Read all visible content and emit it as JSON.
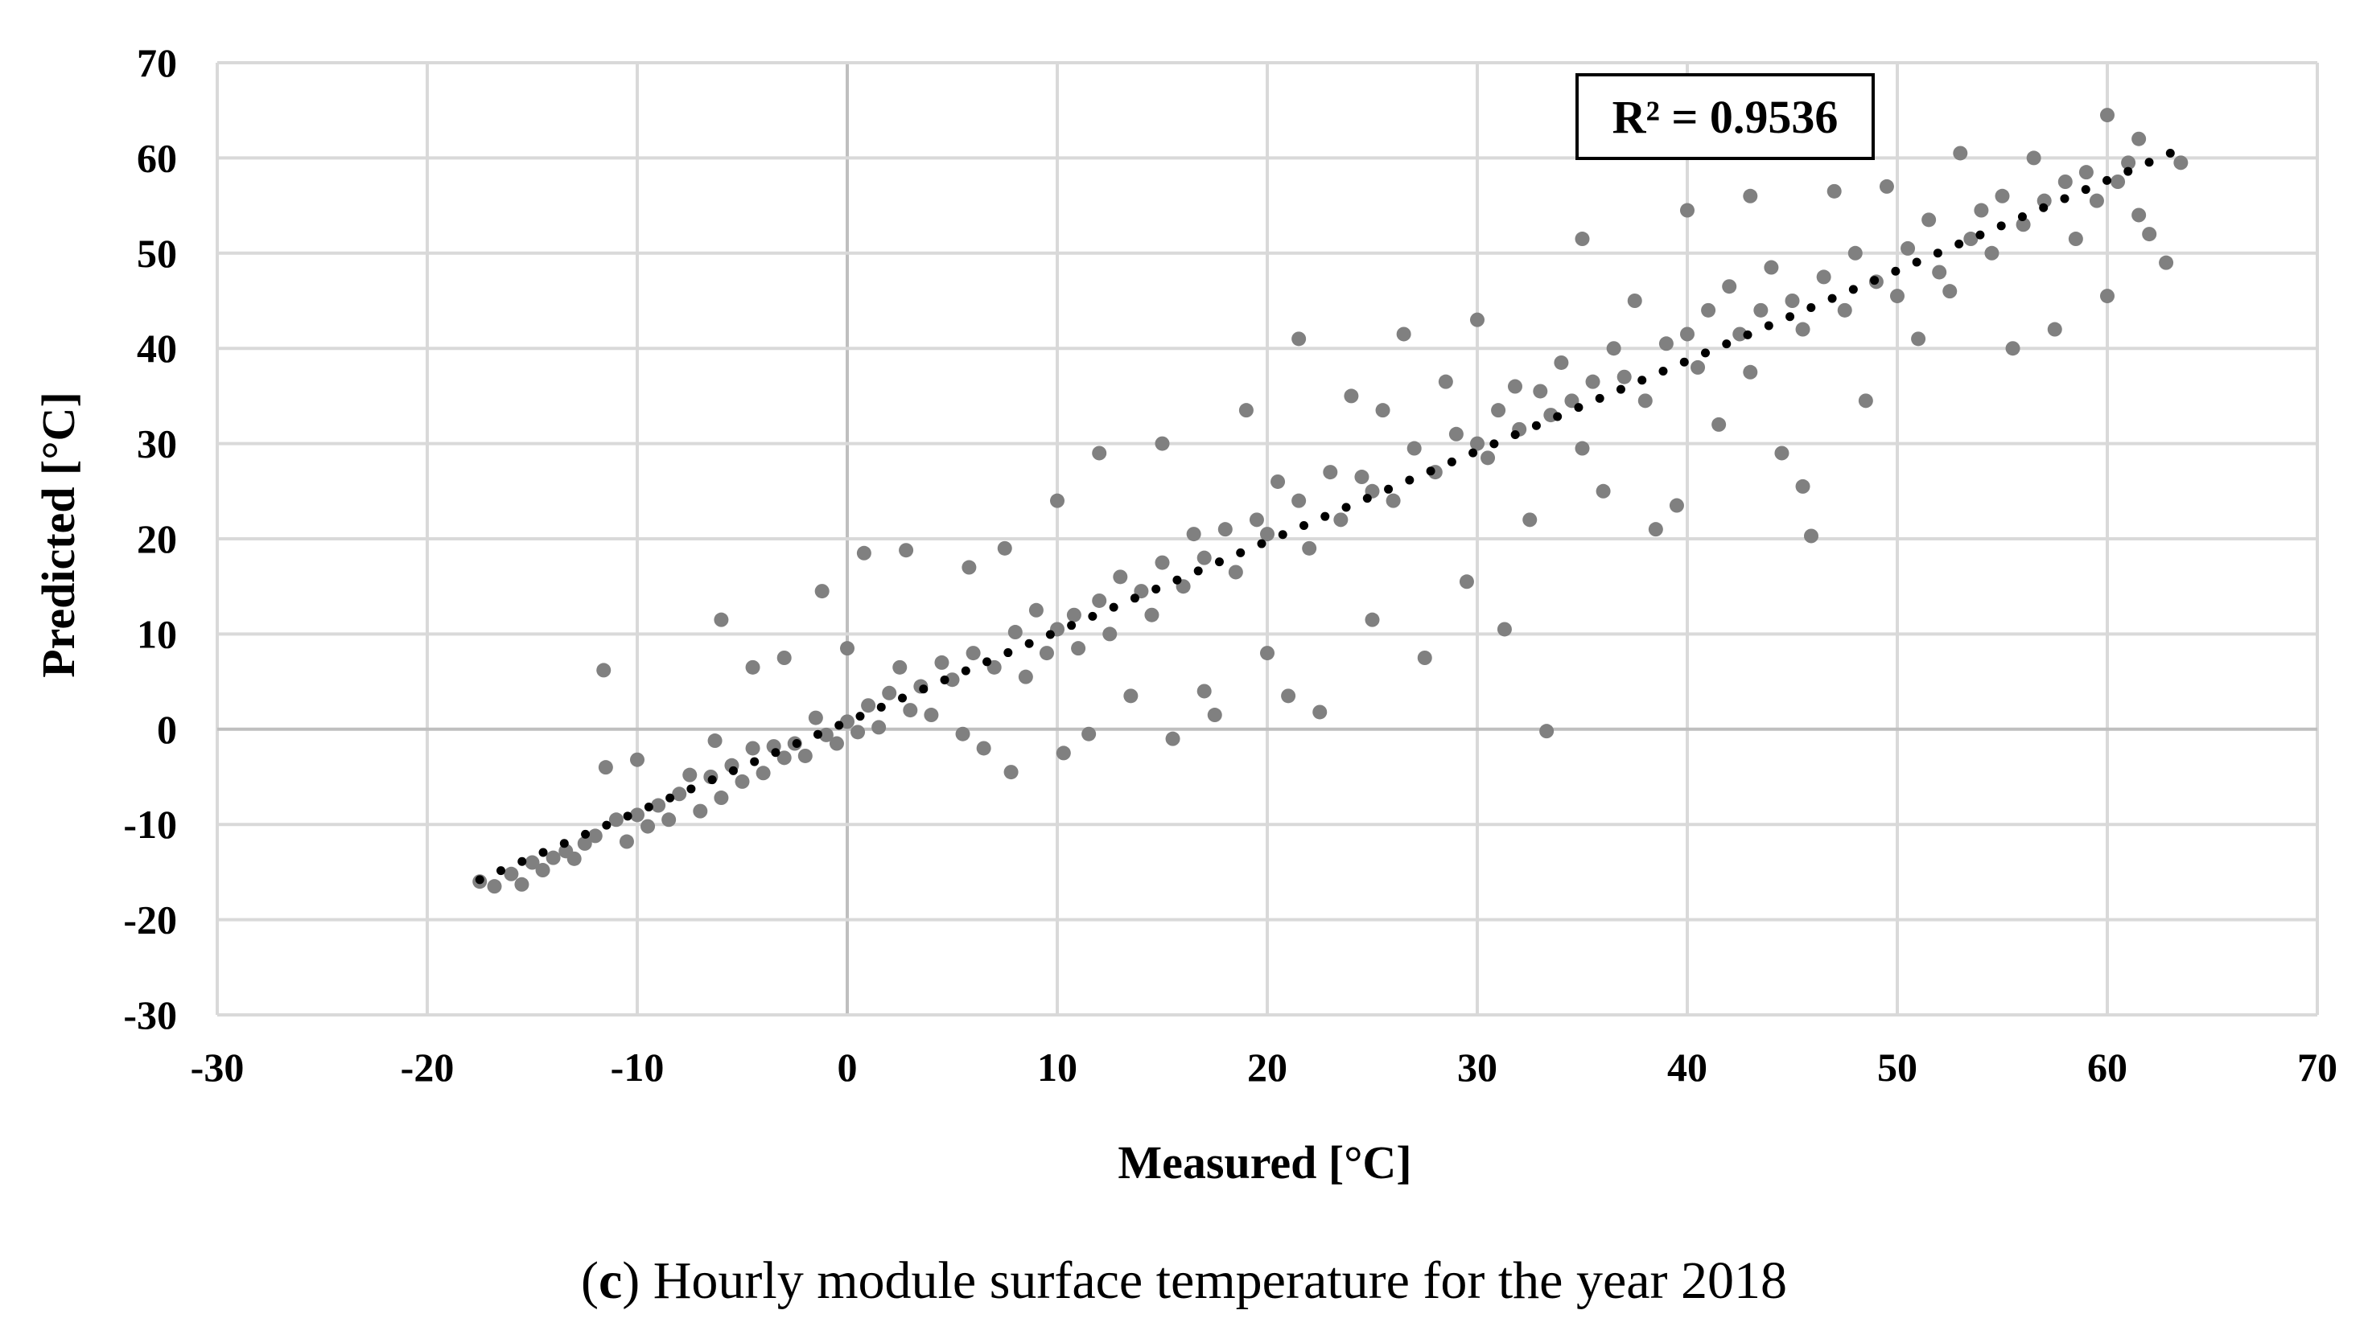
{
  "chart_data": {
    "type": "scatter",
    "title": "",
    "xlabel": "Measured [°C]",
    "ylabel": "Predicted [°C]",
    "xlim": [
      -30,
      70
    ],
    "ylim": [
      -30,
      70
    ],
    "xticks": [
      -30,
      -20,
      -10,
      0,
      10,
      20,
      30,
      40,
      50,
      60,
      70
    ],
    "yticks": [
      -30,
      -20,
      -10,
      0,
      10,
      20,
      30,
      40,
      50,
      60,
      70
    ],
    "grid": true,
    "series": [
      {
        "name": "Hourly module surface temperature",
        "marker_color": "#808080",
        "points": [
          [
            -17.5,
            -16
          ],
          [
            -16.8,
            -16.5
          ],
          [
            -16.0,
            -15.2
          ],
          [
            -15.5,
            -16.3
          ],
          [
            -15.0,
            -14.0
          ],
          [
            -14.5,
            -14.8
          ],
          [
            -14.0,
            -13.5
          ],
          [
            -13.4,
            -12.8
          ],
          [
            -13.0,
            -13.6
          ],
          [
            -12.5,
            -12.0
          ],
          [
            -12.0,
            -11.2
          ],
          [
            -11.6,
            6.2
          ],
          [
            -11.5,
            -4.0
          ],
          [
            -11.0,
            -9.5
          ],
          [
            -10.5,
            -11.8
          ],
          [
            -10.0,
            -9.0
          ],
          [
            -10.0,
            -3.2
          ],
          [
            -9.5,
            -10.2
          ],
          [
            -9.0,
            -8.0
          ],
          [
            -8.5,
            -9.5
          ],
          [
            -8.0,
            -6.8
          ],
          [
            -7.5,
            -4.8
          ],
          [
            -7.0,
            -8.6
          ],
          [
            -6.5,
            -5.0
          ],
          [
            -6.3,
            -1.2
          ],
          [
            -6.0,
            11.5
          ],
          [
            -6.0,
            -7.2
          ],
          [
            -5.5,
            -3.8
          ],
          [
            -5.0,
            -5.5
          ],
          [
            -4.5,
            -2.0
          ],
          [
            -4.5,
            6.5
          ],
          [
            -4.0,
            -4.6
          ],
          [
            -3.5,
            -1.8
          ],
          [
            -3.0,
            7.5
          ],
          [
            -3.0,
            -3.0
          ],
          [
            -2.5,
            -1.5
          ],
          [
            -2.0,
            -2.8
          ],
          [
            -1.5,
            1.2
          ],
          [
            -1.2,
            14.5
          ],
          [
            -1.0,
            -0.6
          ],
          [
            -0.5,
            -1.5
          ],
          [
            0.0,
            0.8
          ],
          [
            0.0,
            8.5
          ],
          [
            0.5,
            -0.3
          ],
          [
            0.8,
            18.5
          ],
          [
            1.0,
            2.5
          ],
          [
            1.5,
            0.2
          ],
          [
            2.0,
            3.8
          ],
          [
            2.5,
            6.5
          ],
          [
            2.8,
            18.8
          ],
          [
            3.0,
            2.0
          ],
          [
            3.5,
            4.5
          ],
          [
            4.0,
            1.5
          ],
          [
            4.5,
            7.0
          ],
          [
            5.0,
            5.2
          ],
          [
            5.5,
            -0.5
          ],
          [
            5.8,
            17.0
          ],
          [
            6.0,
            8.0
          ],
          [
            6.5,
            -2.0
          ],
          [
            7.0,
            6.5
          ],
          [
            7.5,
            19.0
          ],
          [
            7.8,
            -4.5
          ],
          [
            8.0,
            10.2
          ],
          [
            8.5,
            5.5
          ],
          [
            9.0,
            12.5
          ],
          [
            9.5,
            8.0
          ],
          [
            10.0,
            10.5
          ],
          [
            10.0,
            24.0
          ],
          [
            10.3,
            -2.5
          ],
          [
            10.8,
            12.0
          ],
          [
            11.0,
            8.5
          ],
          [
            11.5,
            -0.5
          ],
          [
            12.0,
            29.0
          ],
          [
            12.0,
            13.5
          ],
          [
            12.5,
            10.0
          ],
          [
            13.0,
            16.0
          ],
          [
            13.5,
            3.5
          ],
          [
            14.0,
            14.5
          ],
          [
            14.5,
            12.0
          ],
          [
            15.0,
            30.0
          ],
          [
            15.0,
            17.5
          ],
          [
            15.5,
            -1.0
          ],
          [
            16.0,
            15.0
          ],
          [
            16.5,
            20.5
          ],
          [
            17.0,
            4.0
          ],
          [
            17.0,
            18.0
          ],
          [
            17.5,
            1.5
          ],
          [
            18.0,
            21.0
          ],
          [
            18.5,
            16.5
          ],
          [
            19.0,
            33.5
          ],
          [
            19.5,
            22.0
          ],
          [
            20.0,
            8.0
          ],
          [
            20.0,
            20.5
          ],
          [
            20.5,
            26.0
          ],
          [
            21.0,
            3.5
          ],
          [
            21.5,
            41.0
          ],
          [
            21.5,
            24.0
          ],
          [
            22.0,
            19.0
          ],
          [
            22.5,
            1.8
          ],
          [
            23.0,
            27.0
          ],
          [
            23.5,
            22.0
          ],
          [
            24.0,
            35.0
          ],
          [
            24.5,
            26.5
          ],
          [
            25.0,
            11.5
          ],
          [
            25.0,
            25.0
          ],
          [
            25.5,
            33.5
          ],
          [
            26.0,
            24.0
          ],
          [
            26.5,
            41.5
          ],
          [
            27.0,
            29.5
          ],
          [
            27.5,
            7.5
          ],
          [
            28.0,
            27.0
          ],
          [
            28.5,
            36.5
          ],
          [
            29.0,
            31.0
          ],
          [
            29.5,
            15.5
          ],
          [
            30.0,
            30.0
          ],
          [
            30.0,
            43.0
          ],
          [
            30.5,
            28.5
          ],
          [
            31.0,
            33.5
          ],
          [
            31.3,
            10.5
          ],
          [
            31.8,
            36.0
          ],
          [
            32.0,
            31.5
          ],
          [
            32.5,
            22.0
          ],
          [
            33.0,
            35.5
          ],
          [
            33.3,
            -0.2
          ],
          [
            33.5,
            33.0
          ],
          [
            34.0,
            38.5
          ],
          [
            34.5,
            34.5
          ],
          [
            35.0,
            51.5
          ],
          [
            35.0,
            29.5
          ],
          [
            35.5,
            36.5
          ],
          [
            36.0,
            25.0
          ],
          [
            36.5,
            40.0
          ],
          [
            37.0,
            37.0
          ],
          [
            37.5,
            45.0
          ],
          [
            38.0,
            34.5
          ],
          [
            38.5,
            21.0
          ],
          [
            39.0,
            40.5
          ],
          [
            39.5,
            23.5
          ],
          [
            40.0,
            41.5
          ],
          [
            40.0,
            54.5
          ],
          [
            40.5,
            38.0
          ],
          [
            41.0,
            44.0
          ],
          [
            41.5,
            32.0
          ],
          [
            42.0,
            46.5
          ],
          [
            42.5,
            41.5
          ],
          [
            43.0,
            56.0
          ],
          [
            43.0,
            37.5
          ],
          [
            43.5,
            44.0
          ],
          [
            44.0,
            48.5
          ],
          [
            44.5,
            29.0
          ],
          [
            45.0,
            45.0
          ],
          [
            45.5,
            42.0
          ],
          [
            45.5,
            25.5
          ],
          [
            45.9,
            20.3
          ],
          [
            46.5,
            47.5
          ],
          [
            47.0,
            56.5
          ],
          [
            47.5,
            44.0
          ],
          [
            48.0,
            50.0
          ],
          [
            48.5,
            34.5
          ],
          [
            49.0,
            47.0
          ],
          [
            49.5,
            57.0
          ],
          [
            50.0,
            45.5
          ],
          [
            50.5,
            50.5
          ],
          [
            51.0,
            41.0
          ],
          [
            51.5,
            53.5
          ],
          [
            52.0,
            48.0
          ],
          [
            52.5,
            46.0
          ],
          [
            53.0,
            60.5
          ],
          [
            53.5,
            51.5
          ],
          [
            54.0,
            54.5
          ],
          [
            54.5,
            50.0
          ],
          [
            55.0,
            56.0
          ],
          [
            55.5,
            40.0
          ],
          [
            56.0,
            53.0
          ],
          [
            56.5,
            60.0
          ],
          [
            57.0,
            55.5
          ],
          [
            57.5,
            42.0
          ],
          [
            58.0,
            57.5
          ],
          [
            58.5,
            51.5
          ],
          [
            59.0,
            58.5
          ],
          [
            59.5,
            55.5
          ],
          [
            60.0,
            64.5
          ],
          [
            60.0,
            45.5
          ],
          [
            60.5,
            57.5
          ],
          [
            61.0,
            59.5
          ],
          [
            61.5,
            62.0
          ],
          [
            61.5,
            54.0
          ],
          [
            62.0,
            52.0
          ],
          [
            62.8,
            49.0
          ],
          [
            63.5,
            59.5
          ]
        ]
      }
    ],
    "trendline": {
      "style": "dotted",
      "color": "#000000",
      "x": [
        -17.5,
        63
      ],
      "y": [
        -15.8,
        60.5
      ],
      "label": "R² = 0.9536"
    }
  },
  "caption": {
    "open": "(",
    "letter": "c",
    "rest": ") Hourly module surface temperature for the year 2018"
  }
}
